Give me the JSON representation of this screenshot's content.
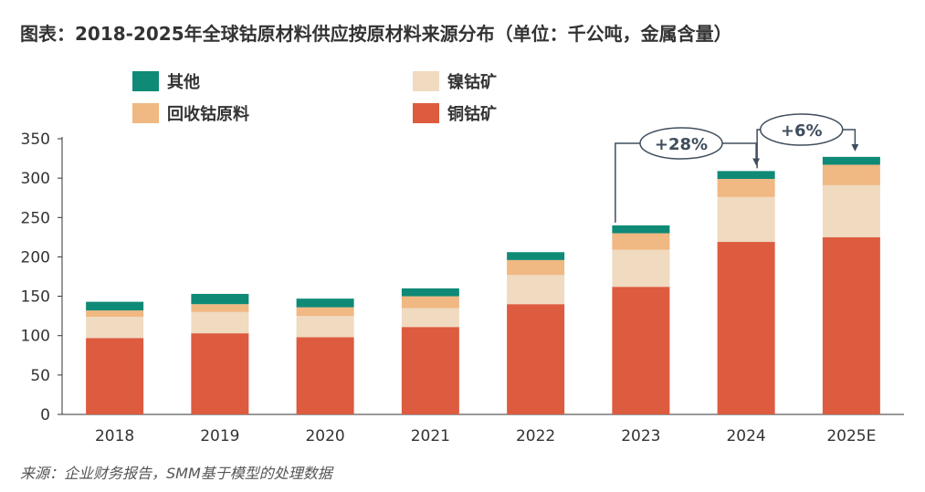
{
  "title": "图表：2018-2025年全球钴原材料供应按原材料来源分布（单位：千公吨，金属含量）",
  "source": "来源：企业财务报告，SMM基于模型的处理数据",
  "colors": {
    "copper": "#dd5b3f",
    "nickel": "#f0dac0",
    "recycled": "#f0b882",
    "other": "#0f8a76",
    "axis": "#333333",
    "annotation": "#3f4d5c"
  },
  "chart_data": {
    "type": "bar",
    "stacked": true,
    "categories": [
      "2018",
      "2019",
      "2020",
      "2021",
      "2022",
      "2023",
      "2024",
      "2025E"
    ],
    "series": [
      {
        "name": "铜钴矿",
        "key": "copper",
        "values": [
          97,
          103,
          98,
          111,
          140,
          162,
          219,
          225
        ]
      },
      {
        "name": "镍钴矿",
        "key": "nickel",
        "values": [
          27,
          27,
          27,
          24,
          37,
          47,
          57,
          66
        ]
      },
      {
        "name": "回收钴原料",
        "key": "recycled",
        "values": [
          8,
          10,
          11,
          15,
          19,
          21,
          23,
          26
        ]
      },
      {
        "name": "其他",
        "key": "other",
        "values": [
          11,
          13,
          11,
          10,
          10,
          10,
          10,
          10
        ]
      }
    ],
    "legend": {
      "position": "top",
      "order": [
        "其他",
        "镍钴矿",
        "回收钴原料",
        "铜钴矿"
      ]
    },
    "ylim": [
      0,
      350
    ],
    "yticks": [
      0,
      50,
      100,
      150,
      200,
      250,
      300,
      350
    ],
    "xlabel": "",
    "ylabel": "",
    "grid": false,
    "annotations": [
      {
        "label": "+28%",
        "from": "2023",
        "to": "2024"
      },
      {
        "label": "+6%",
        "from": "2024",
        "to": "2025E"
      }
    ]
  }
}
